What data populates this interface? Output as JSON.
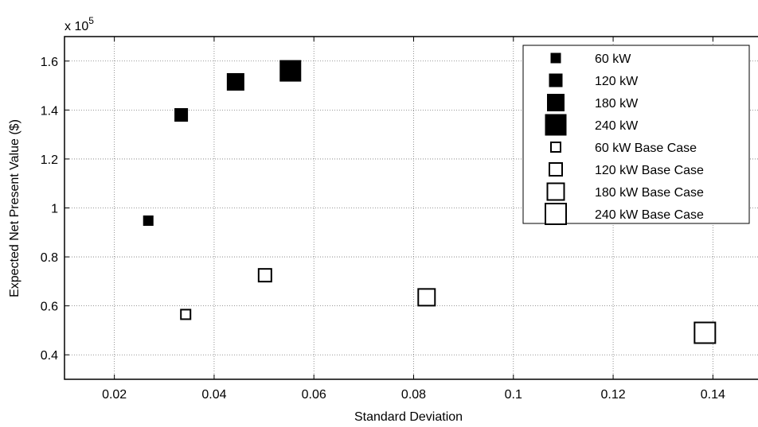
{
  "chart_data": {
    "type": "scatter",
    "title": "",
    "xlabel": "Standard Deviation",
    "ylabel": "Expected Net Present Value ($)",
    "y_exponent_label": "x 10",
    "y_exponent_power": "5",
    "xlim": [
      0.01,
      0.15
    ],
    "ylim": [
      30000,
      170000
    ],
    "x_ticks": [
      0.02,
      0.04,
      0.06,
      0.08,
      0.1,
      0.12,
      0.14
    ],
    "x_tick_labels": [
      "0.02",
      "0.04",
      "0.06",
      "0.08",
      "0.1",
      "0.12",
      "0.14"
    ],
    "y_ticks": [
      40000,
      60000,
      80000,
      100000,
      120000,
      140000,
      160000
    ],
    "y_tick_labels": [
      "0.4",
      "0.6",
      "0.8",
      "1",
      "1.2",
      "1.4",
      "1.6"
    ],
    "grid": true,
    "legend_position": "top-right",
    "series": [
      {
        "name": "60 kW",
        "marker": "filled-square",
        "color": "#000000",
        "x": [
          0.0268
        ],
        "y": [
          94800
        ]
      },
      {
        "name": "120 kW",
        "marker": "filled-square",
        "color": "#000000",
        "x": [
          0.0334
        ],
        "y": [
          138000
        ]
      },
      {
        "name": "180 kW",
        "marker": "filled-square",
        "color": "#000000",
        "x": [
          0.0443
        ],
        "y": [
          151500
        ]
      },
      {
        "name": "240 kW",
        "marker": "filled-square",
        "color": "#000000",
        "x": [
          0.0553
        ],
        "y": [
          156000
        ]
      },
      {
        "name": "60 kW Base Case",
        "marker": "open-square",
        "color": "#000000",
        "x": [
          0.0343
        ],
        "y": [
          56500
        ]
      },
      {
        "name": "120 kW Base Case",
        "marker": "open-square",
        "color": "#000000",
        "x": [
          0.0502
        ],
        "y": [
          72500
        ]
      },
      {
        "name": "180 kW Base Case",
        "marker": "open-square",
        "color": "#000000",
        "x": [
          0.0826
        ],
        "y": [
          63500
        ]
      },
      {
        "name": "240 kW Base Case",
        "marker": "open-square",
        "color": "#000000",
        "x": [
          0.1384
        ],
        "y": [
          49000
        ]
      }
    ]
  }
}
